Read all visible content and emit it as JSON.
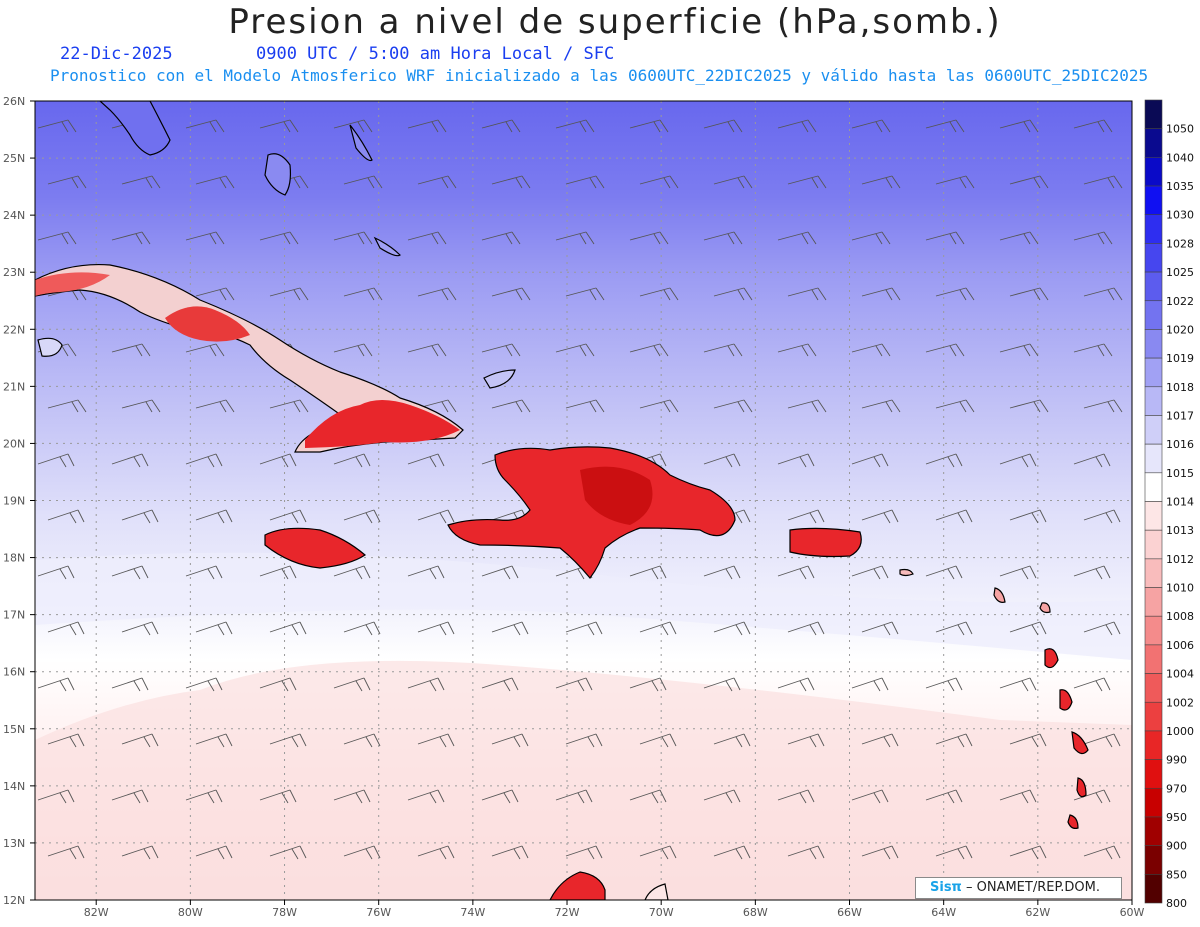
{
  "header": {
    "title": "Presion a nivel de superficie (hPa,somb.)",
    "date": "22-Dic-2025",
    "time_label": "0900 UTC / 5:00 am Hora Local / SFC",
    "forecast_info": "Pronostico con el Modelo Atmosferico WRF inicializado a las 0600UTC_22DIC2025 y válido hasta las  0600UTC_25DIC2025"
  },
  "axes": {
    "lat_labels": [
      "26N",
      "25N",
      "24N",
      "23N",
      "22N",
      "21N",
      "20N",
      "19N",
      "18N",
      "17N",
      "16N",
      "15N",
      "14N",
      "13N",
      "12N"
    ],
    "lon_labels": [
      "82W",
      "80W",
      "78W",
      "76W",
      "74W",
      "72W",
      "70W",
      "68W",
      "66W",
      "64W",
      "62W",
      "60W"
    ],
    "lat_range": [
      12,
      26
    ],
    "lon_range": [
      -83.3,
      -60
    ]
  },
  "colorbar": {
    "levels": [
      "1050",
      "1040",
      "1035",
      "1030",
      "1028",
      "1025",
      "1022",
      "1020",
      "1019",
      "1018",
      "1017",
      "1016",
      "1015",
      "1014",
      "1013",
      "1012",
      "1010",
      "1008",
      "1006",
      "1004",
      "1002",
      "1000",
      "990",
      "970",
      "950",
      "900",
      "850",
      "800"
    ],
    "colors": [
      "#0a0a55",
      "#0a0a8f",
      "#0a0ac8",
      "#1010f2",
      "#2e2ef0",
      "#4646ef",
      "#5c5cee",
      "#7373f0",
      "#8989f1",
      "#a1a1f4",
      "#b8b8f6",
      "#cfcff8",
      "#e6e6fb",
      "#ffffff",
      "#fde6e6",
      "#fbd2d2",
      "#f9bcbc",
      "#f6a3a3",
      "#f48b8b",
      "#f27272",
      "#ef5a5a",
      "#ec4040",
      "#e82626",
      "#e01010",
      "#c80000",
      "#a00000",
      "#7a0000",
      "#520000"
    ]
  },
  "colors": {
    "pressure_high": "#6a6aee",
    "pressure_mid": "#c8c8f6",
    "pressure_low": "#fde2e2",
    "land_low_pressure": "#e8262b",
    "coastline": "#000000",
    "grid": "#9a9a9a",
    "wind_barb": "#555555"
  },
  "credit": {
    "logo": "Sisπ",
    "text": "– ONAMET/REP.DOM."
  }
}
